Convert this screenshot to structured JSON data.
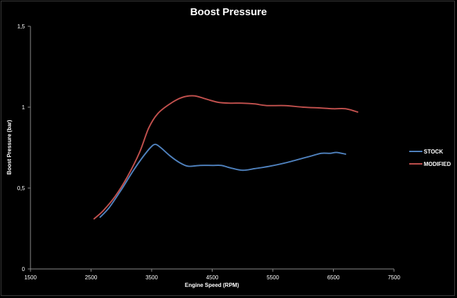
{
  "chart_data": {
    "type": "line",
    "title": "Boost Pressure",
    "xlabel": "Engine Speed (RPM)",
    "ylabel": "Boost Pressure (bar)",
    "xlim": [
      1500,
      7500
    ],
    "ylim": [
      0,
      1.5
    ],
    "xticks": [
      "1500",
      "2500",
      "3500",
      "4500",
      "5500",
      "6500",
      "7500"
    ],
    "yticks": [
      "0",
      "0,5",
      "1",
      "1,5"
    ],
    "grid": false,
    "legend_position": "right",
    "series": [
      {
        "name": "STOCK",
        "color": "#4f81bd",
        "points": [
          [
            2650,
            0.32
          ],
          [
            2800,
            0.38
          ],
          [
            3000,
            0.49
          ],
          [
            3200,
            0.61
          ],
          [
            3350,
            0.69
          ],
          [
            3480,
            0.75
          ],
          [
            3560,
            0.77
          ],
          [
            3650,
            0.75
          ],
          [
            3800,
            0.7
          ],
          [
            3950,
            0.66
          ],
          [
            4100,
            0.635
          ],
          [
            4300,
            0.64
          ],
          [
            4500,
            0.64
          ],
          [
            4650,
            0.64
          ],
          [
            4800,
            0.625
          ],
          [
            5000,
            0.61
          ],
          [
            5200,
            0.62
          ],
          [
            5450,
            0.635
          ],
          [
            5700,
            0.655
          ],
          [
            6000,
            0.685
          ],
          [
            6150,
            0.7
          ],
          [
            6300,
            0.715
          ],
          [
            6450,
            0.715
          ],
          [
            6550,
            0.72
          ],
          [
            6700,
            0.71
          ]
        ]
      },
      {
        "name": "MODIFIED",
        "color": "#c0504d",
        "points": [
          [
            2550,
            0.31
          ],
          [
            2700,
            0.36
          ],
          [
            2900,
            0.45
          ],
          [
            3100,
            0.57
          ],
          [
            3300,
            0.72
          ],
          [
            3450,
            0.87
          ],
          [
            3600,
            0.96
          ],
          [
            3800,
            1.02
          ],
          [
            4000,
            1.06
          ],
          [
            4200,
            1.07
          ],
          [
            4400,
            1.05
          ],
          [
            4600,
            1.03
          ],
          [
            4800,
            1.025
          ],
          [
            5000,
            1.025
          ],
          [
            5200,
            1.02
          ],
          [
            5400,
            1.01
          ],
          [
            5700,
            1.01
          ],
          [
            6000,
            1.0
          ],
          [
            6300,
            0.995
          ],
          [
            6500,
            0.99
          ],
          [
            6700,
            0.99
          ],
          [
            6900,
            0.97
          ]
        ]
      }
    ]
  }
}
